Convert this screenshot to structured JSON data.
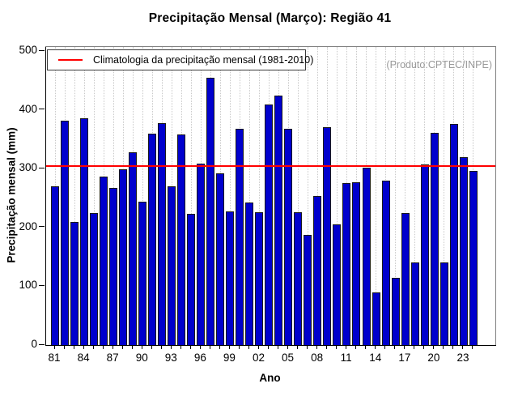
{
  "chart_data": {
    "type": "bar",
    "title": "Precipitação Mensal (Março): Região 41",
    "xlabel": "Ano",
    "ylabel": "Precipitação mensal (mm)",
    "legend": "Climatologia da precipitação mensal (1981-2010)",
    "annotation": "(Produto:CPTEC/INPE)",
    "ylim": [
      0,
      500
    ],
    "yticks": [
      0,
      100,
      200,
      300,
      400,
      500
    ],
    "grid": "vertical-dotted",
    "legend_position": "top-left",
    "climatology_value": 303,
    "x": [
      "1981",
      "1982",
      "1983",
      "1984",
      "1985",
      "1986",
      "1987",
      "1988",
      "1989",
      "1990",
      "1991",
      "1992",
      "1993",
      "1994",
      "1995",
      "1996",
      "1997",
      "1998",
      "1999",
      "2000",
      "2001",
      "2002",
      "2003",
      "2004",
      "2005",
      "2006",
      "2007",
      "2008",
      "2009",
      "2010",
      "2011",
      "2012",
      "2013",
      "2014",
      "2015",
      "2016",
      "2017",
      "2018",
      "2019",
      "2020",
      "2021",
      "2022",
      "2023",
      "2024"
    ],
    "values": [
      270,
      381,
      209,
      385,
      225,
      286,
      267,
      299,
      328,
      244,
      360,
      377,
      270,
      358,
      223,
      308,
      454,
      292,
      227,
      368,
      242,
      226,
      409,
      424,
      368,
      226,
      188,
      253,
      370,
      205,
      276,
      277,
      301,
      90,
      280,
      115,
      225,
      140,
      307,
      361,
      140,
      376,
      320,
      296
    ],
    "xtick_labels": [
      "81",
      "84",
      "87",
      "90",
      "93",
      "96",
      "99",
      "02",
      "05",
      "08",
      "11",
      "14",
      "17",
      "20",
      "23"
    ],
    "xtick_every": 3,
    "colors": {
      "bar_fill": "#0000CD",
      "bar_border": "#1a1a1a",
      "climatology_line": "#FF0000",
      "gridline": "#c9c9c9",
      "annotation_text": "#9a9a9a"
    }
  }
}
